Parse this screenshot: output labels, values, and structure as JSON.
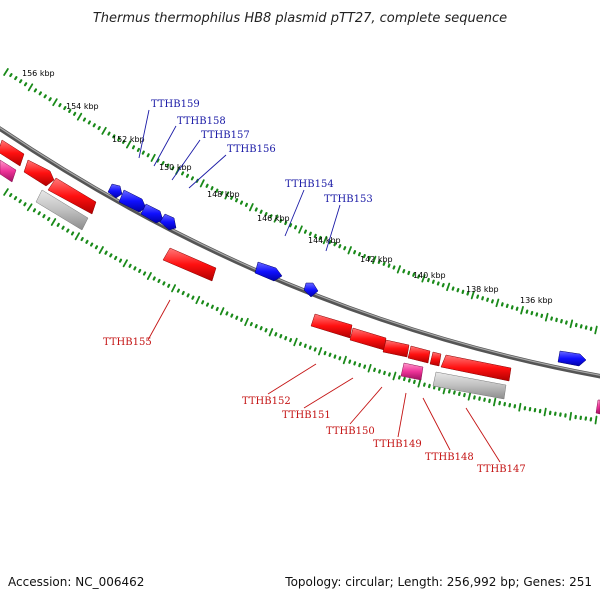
{
  "title": "Thermus thermophilus HB8 plasmid pTT27, complete sequence",
  "footer": {
    "accession": "Accession: NC_006462",
    "summary": "Topology: circular; Length: 256,992 bp; Genes: 251"
  },
  "kbp_labels": [
    "156 kbp",
    "154 kbp",
    "152 kbp",
    "150 kbp",
    "148 kbp",
    "146 kbp",
    "144 kbp",
    "142 kbp",
    "140 kbp",
    "138 kbp",
    "136 kbp"
  ],
  "genes_top": [
    "TTHB159",
    "TTHB158",
    "TTHB157",
    "TTHB156",
    "TTHB154",
    "TTHB153"
  ],
  "genes_bottom": [
    "TTHB155",
    "TTHB152",
    "TTHB151",
    "TTHB150",
    "TTHB149",
    "TTHB148",
    "TTHB147"
  ],
  "colors": {
    "forward_gene": "#1010ff",
    "reverse_gene": "#ff1010",
    "rna_gene": "#ee3399",
    "pseudo_gene": "#c0c0c0",
    "backbone": "#808080",
    "ticks": "#1a8a1a",
    "label_blue": "#1a1aa6",
    "label_red": "#c41414"
  }
}
